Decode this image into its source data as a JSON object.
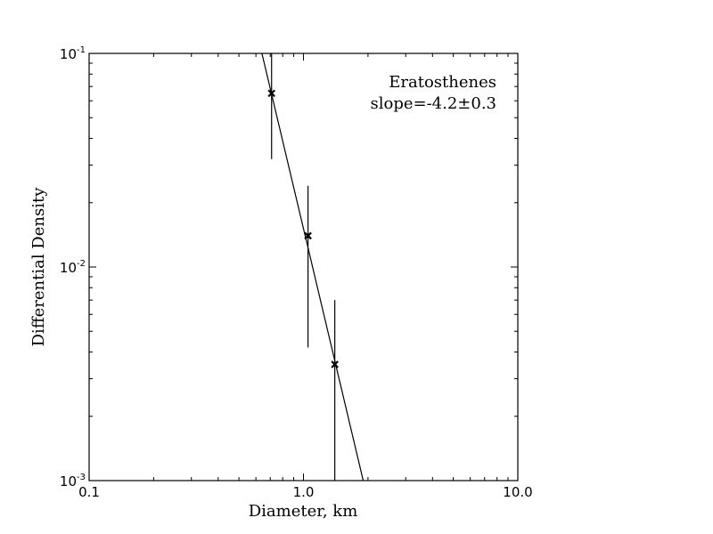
{
  "chart_data": {
    "type": "scatter",
    "xscale": "log",
    "yscale": "log",
    "xlabel": "Diameter, km",
    "ylabel": "Differential Density",
    "xlim": [
      0.1,
      10.0
    ],
    "ylim": [
      0.001,
      0.1
    ],
    "x_ticks": [
      {
        "value": 0.1,
        "label": "0.1"
      },
      {
        "value": 1.0,
        "label": "1.0"
      },
      {
        "value": 10.0,
        "label": "10.0"
      }
    ],
    "y_ticks": [
      {
        "value": 0.001,
        "base": "10",
        "exp": "-3"
      },
      {
        "value": 0.01,
        "base": "10",
        "exp": "-2"
      },
      {
        "value": 0.1,
        "base": "10",
        "exp": "-1"
      }
    ],
    "points": [
      {
        "x": 0.71,
        "y": 0.065,
        "y_low": 0.032,
        "y_high": 0.1
      },
      {
        "x": 1.05,
        "y": 0.014,
        "y_low": 0.0042,
        "y_high": 0.024
      },
      {
        "x": 1.4,
        "y": 0.0035,
        "y_low": 0.001,
        "y_high": 0.007
      }
    ],
    "fit_line": {
      "x": [
        0.64,
        1.9
      ],
      "y": [
        0.1,
        0.001
      ]
    },
    "annotation": {
      "name": "Eratosthenes",
      "slope": "slope=-4.2±0.3",
      "placement": "top-right"
    },
    "marker": "x",
    "color": "#000000",
    "grid": false
  }
}
